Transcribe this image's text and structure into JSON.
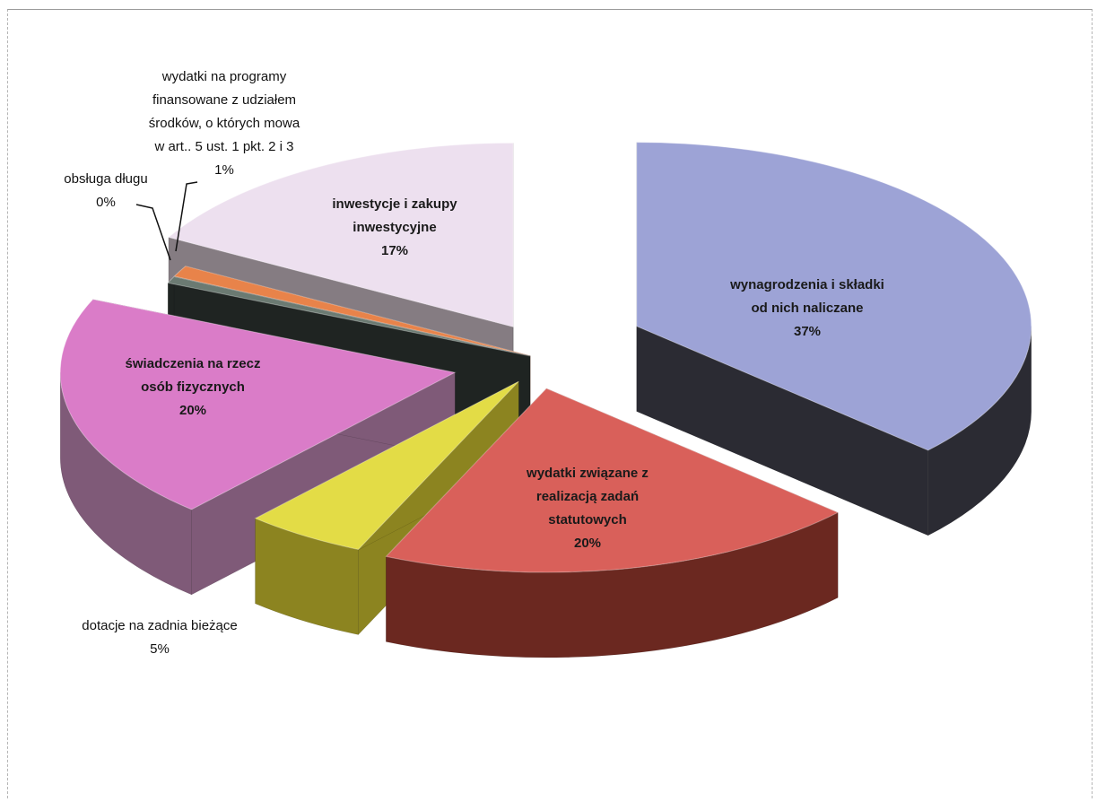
{
  "chart_data": {
    "type": "pie",
    "style": "3d-exploded",
    "title": "",
    "slices": [
      {
        "label": "wynagrodzenia i składki od nich naliczane",
        "lines": [
          "wynagrodzenia i składki",
          "od nich naliczane"
        ],
        "value": 37,
        "pct_label": "37%",
        "color": "#9da3d6",
        "side_color": "#2b2b33"
      },
      {
        "label": "wydatki związane z realizacją zadań statutowych",
        "lines": [
          "wydatki związane z",
          "realizacją zadań",
          "statutowych"
        ],
        "value": 20,
        "pct_label": "20%",
        "color": "#d9605a",
        "side_color": "#6b2820"
      },
      {
        "label": "dotacje na zadnia bieżące",
        "lines": [
          "dotacje na zadnia bieżące"
        ],
        "value": 5,
        "pct_label": "5%",
        "color": "#e3dc46",
        "side_color": "#8c8420"
      },
      {
        "label": "świadczenia na rzecz osób fizycznych",
        "lines": [
          "świadczenia na rzecz",
          "osób fizycznych"
        ],
        "value": 20,
        "pct_label": "20%",
        "color": "#da7cc8",
        "side_color": "#7f5a78"
      },
      {
        "label": "obsługa długu",
        "lines": [
          "obsługa długu"
        ],
        "value": 0,
        "pct_label": "0%",
        "color": "#6b7a72",
        "side_color": "#1f2422"
      },
      {
        "label": "wydatki na programy finansowane z udziałem środków, o których mowa w art.. 5 ust. 1 pkt. 2 i 3",
        "lines": [
          "wydatki na programy",
          "finansowane z udziałem",
          "środków, o których mowa",
          "w art.. 5 ust. 1 pkt. 2 i 3"
        ],
        "value": 1,
        "pct_label": "1%",
        "color": "#e8834a",
        "side_color": "#7a3a1a"
      },
      {
        "label": "inwestycje i zakupy inwestycyjne",
        "lines": [
          "inwestycje i zakupy",
          "inwestycyjne"
        ],
        "value": 17,
        "pct_label": "17%",
        "color": "#ede0ef",
        "side_color": "#857c82"
      }
    ]
  }
}
